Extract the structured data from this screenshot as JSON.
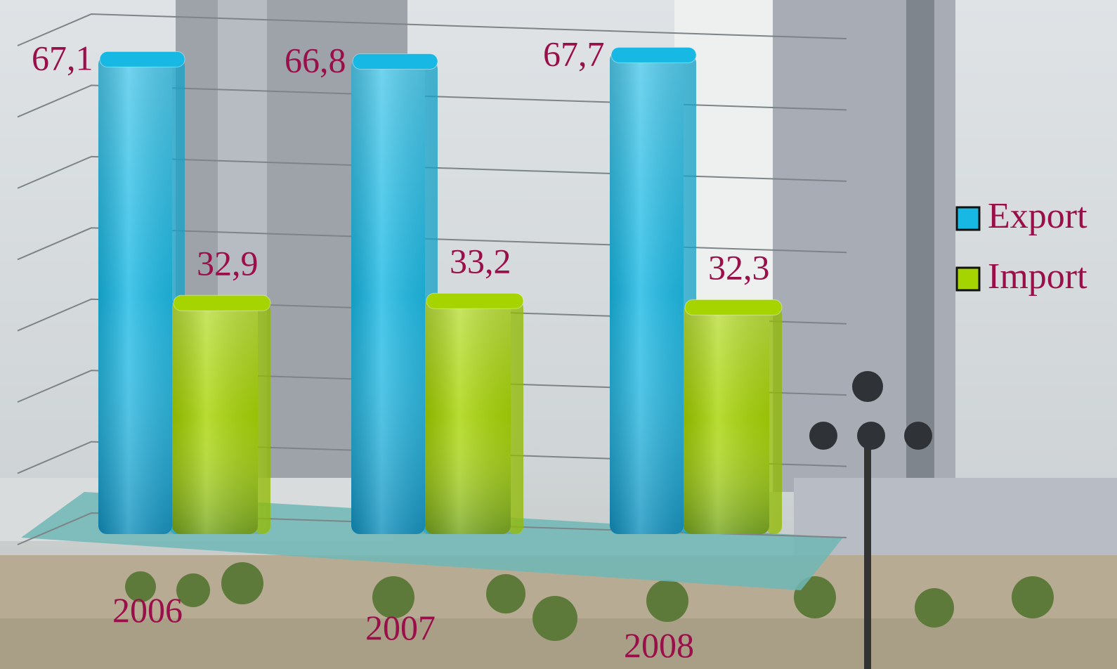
{
  "chart_data": {
    "type": "bar3d",
    "categories": [
      "2006",
      "2007",
      "2008"
    ],
    "series": [
      {
        "name": "Export",
        "color": "#18b8e4",
        "values": [
          67.1,
          66.8,
          67.7
        ],
        "value_labels": [
          "67,1",
          "66,8",
          "67,7"
        ]
      },
      {
        "name": "Import",
        "color": "#a6d400",
        "values": [
          32.9,
          33.2,
          32.3
        ],
        "value_labels": [
          "32,9",
          "33,2",
          "32,3"
        ]
      }
    ],
    "ylim": [
      0,
      70
    ],
    "yticks": [
      0,
      10,
      20,
      30,
      40,
      50,
      60,
      70
    ],
    "grid": true,
    "legend": "right"
  }
}
